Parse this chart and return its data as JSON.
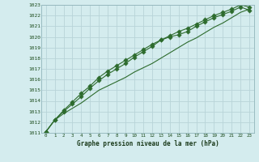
{
  "title": "Graphe pression niveau de la mer (hPa)",
  "bg_color": "#d4ecee",
  "grid_color": "#b8d4d8",
  "line_color": "#2d6b2d",
  "xlim": [
    -0.5,
    23.5
  ],
  "ylim": [
    1011,
    1023
  ],
  "xticks": [
    0,
    1,
    2,
    3,
    4,
    5,
    6,
    7,
    8,
    9,
    10,
    11,
    12,
    13,
    14,
    15,
    16,
    17,
    18,
    19,
    20,
    21,
    22,
    23
  ],
  "yticks": [
    1011,
    1012,
    1013,
    1014,
    1015,
    1016,
    1017,
    1018,
    1019,
    1020,
    1021,
    1022,
    1023
  ],
  "series1": [
    1011.1,
    1012.2,
    1012.8,
    1013.3,
    1013.8,
    1014.4,
    1015.0,
    1015.4,
    1015.8,
    1016.2,
    1016.7,
    1017.1,
    1017.5,
    1018.0,
    1018.5,
    1019.0,
    1019.5,
    1019.9,
    1020.4,
    1020.9,
    1021.3,
    1021.8,
    1022.3,
    1022.6
  ],
  "series2": [
    1011.1,
    1012.2,
    1013.0,
    1013.7,
    1014.4,
    1015.2,
    1015.9,
    1016.5,
    1017.0,
    1017.5,
    1018.1,
    1018.6,
    1019.1,
    1019.7,
    1020.0,
    1020.2,
    1020.5,
    1021.0,
    1021.4,
    1021.8,
    1022.1,
    1022.4,
    1022.8,
    1022.5
  ],
  "series3": [
    1011.1,
    1012.2,
    1013.1,
    1013.9,
    1014.7,
    1015.4,
    1016.2,
    1016.8,
    1017.3,
    1017.8,
    1018.3,
    1018.8,
    1019.3,
    1019.7,
    1020.1,
    1020.5,
    1020.8,
    1021.2,
    1021.6,
    1022.0,
    1022.3,
    1022.6,
    1023.0,
    1022.8
  ]
}
